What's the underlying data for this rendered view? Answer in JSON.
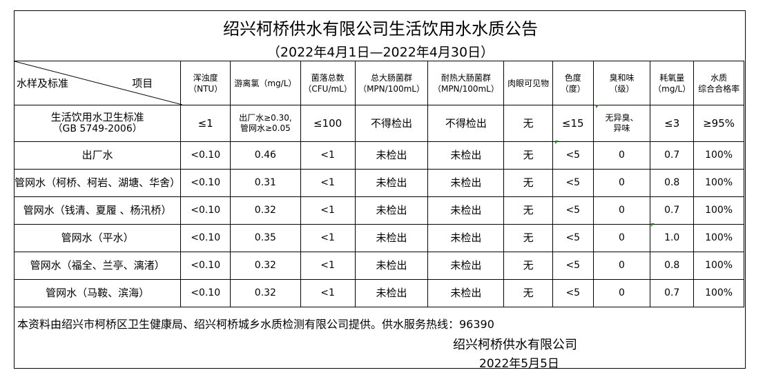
{
  "title": "绍兴柯桥供水有限公司生活饮用水水质公告",
  "period": "（2022年4月1日—2022年4月30日）",
  "header": {
    "corner_left": "水样及标准",
    "corner_right": "项目",
    "columns": [
      [
        "浑浊度",
        "（NTU）"
      ],
      [
        "游离氯（mg/L）",
        ""
      ],
      [
        "菌落总数",
        "（CFU/mL）"
      ],
      [
        "总大肠菌群",
        "（MPN/100mL）"
      ],
      [
        "耐热大肠菌群",
        "（MPN/100mL）"
      ],
      [
        "肉眼可见物",
        ""
      ],
      [
        "色度",
        "（度）"
      ],
      [
        "臭和味",
        "（级）"
      ],
      [
        "耗氧量",
        "（mg/L）"
      ],
      [
        "水质",
        "综合合格率"
      ]
    ]
  },
  "standard": {
    "name": "生活饮用水卫生标准",
    "code": "（GB 5749-2006）",
    "values": [
      "≤1",
      "出厂水≥0.30,\n管网水≥0.05",
      "≤100",
      "不得检出",
      "不得检出",
      "无",
      "≤15",
      "无异臭、\n异味",
      "≤3",
      "≥95%"
    ]
  },
  "rows": [
    {
      "name": "出厂水",
      "values": [
        "<0.10",
        "0.46",
        "<1",
        "未检出",
        "未检出",
        "无",
        "<5",
        "0",
        "0.7",
        "100%"
      ]
    },
    {
      "name": "管网水（柯桥、柯岩、湖塘、华舍）",
      "values": [
        "<0.10",
        "0.31",
        "<1",
        "未检出",
        "未检出",
        "无",
        "<5",
        "0",
        "0.8",
        "100%"
      ]
    },
    {
      "name": "管网水（钱清、夏履 、杨汛桥）",
      "values": [
        "<0.10",
        "0.32",
        "<1",
        "未检出",
        "未检出",
        "无",
        "<5",
        "0",
        "0.7",
        "100%"
      ]
    },
    {
      "name": "管网水（平水）",
      "values": [
        "<0.10",
        "0.35",
        "<1",
        "未检出",
        "未检出",
        "无",
        "<5",
        "0",
        "1.0",
        "100%"
      ]
    },
    {
      "name": "管网水（福全、兰亭、漓渚）",
      "values": [
        "<0.10",
        "0.32",
        "<1",
        "未检出",
        "未检出",
        "无",
        "<5",
        "0",
        "0.8",
        "100%"
      ]
    },
    {
      "name": "管网水（马鞍、滨海）",
      "values": [
        "<0.10",
        "0.32",
        "<1",
        "未检出",
        "未检出",
        "无",
        "<5",
        "0",
        "0.7",
        "100%"
      ]
    }
  ],
  "footer": {
    "note": "本资料由绍兴市柯桥区卫生健康局、绍兴柯桥城乡水质检测有限公司提供。供水服务热线：96390",
    "company": "绍兴柯桥供水有限公司",
    "date": "2022年5月5日"
  }
}
